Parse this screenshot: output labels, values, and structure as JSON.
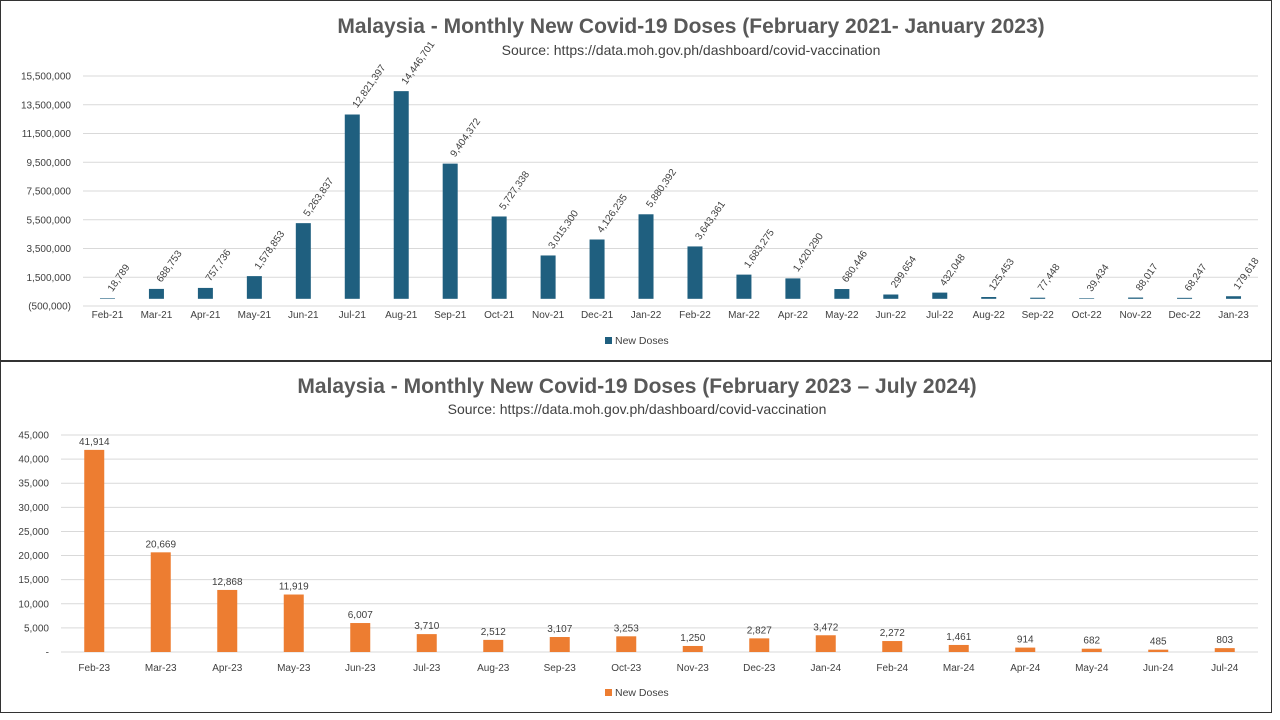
{
  "chart_data": [
    {
      "type": "bar",
      "title": "Malaysia - Monthly New Covid-19 Doses (February 2021- January 2023)",
      "subtitle": "Source: https://data.moh.gov.ph/dashboard/covid-vaccination",
      "categories": [
        "Feb-21",
        "Mar-21",
        "Apr-21",
        "May-21",
        "Jun-21",
        "Jul-21",
        "Aug-21",
        "Sep-21",
        "Oct-21",
        "Nov-21",
        "Dec-21",
        "Jan-22",
        "Feb-22",
        "Mar-22",
        "Apr-22",
        "May-22",
        "Jun-22",
        "Jul-22",
        "Aug-22",
        "Sep-22",
        "Oct-22",
        "Nov-22",
        "Dec-22",
        "Jan-23"
      ],
      "series": [
        {
          "name": "New Doses",
          "values": [
            18789,
            688753,
            757736,
            1578853,
            5263837,
            12821397,
            14446701,
            9404372,
            5727338,
            3015300,
            4126235,
            5880392,
            3643361,
            1683275,
            1420290,
            680446,
            299654,
            432048,
            125453,
            77448,
            39434,
            88017,
            68247,
            179618
          ],
          "data_labels": [
            "18,789",
            "688,753",
            "757,736",
            "1,578,853",
            "5,263,837",
            "12,821,397",
            "14,446,701",
            "9,404,372",
            "5,727,338",
            "3,015,300",
            "4,126,235",
            "5,880,392",
            "3,643,361",
            "1,683,275",
            "1,420,290",
            "680,446",
            "299,654",
            "432,048",
            "125,453",
            "77,448",
            "39,434",
            "88,017",
            "68,247",
            "179,618"
          ]
        }
      ],
      "y_ticks": [
        -500000,
        1500000,
        3500000,
        5500000,
        7500000,
        9500000,
        11500000,
        13500000,
        15500000
      ],
      "y_tick_labels": [
        "(500,000)",
        "1,500,000",
        "3,500,000",
        "5,500,000",
        "7,500,000",
        "9,500,000",
        "11,500,000",
        "13,500,000",
        "15,500,000"
      ],
      "ylim": [
        -500000,
        15500000
      ],
      "grid": true,
      "legend": "bottom",
      "color": "#1f5f7f",
      "label_rotation": "diagonal"
    },
    {
      "type": "bar",
      "title": "Malaysia - Monthly New Covid-19 Doses (February 2023 – July 2024)",
      "subtitle": "Source: https://data.moh.gov.ph/dashboard/covid-vaccination",
      "categories": [
        "Feb-23",
        "Mar-23",
        "Apr-23",
        "May-23",
        "Jun-23",
        "Jul-23",
        "Aug-23",
        "Sep-23",
        "Oct-23",
        "Nov-23",
        "Dec-23",
        "Jan-24",
        "Feb-24",
        "Mar-24",
        "Apr-24",
        "May-24",
        "Jun-24",
        "Jul-24"
      ],
      "series": [
        {
          "name": "New Doses",
          "values": [
            41914,
            20669,
            12868,
            11919,
            6007,
            3710,
            2512,
            3107,
            3253,
            1250,
            2827,
            3472,
            2272,
            1461,
            914,
            682,
            485,
            803
          ],
          "data_labels": [
            "41,914",
            "20,669",
            "12,868",
            "11,919",
            "6,007",
            "3,710",
            "2,512",
            "3,107",
            "3,253",
            "1,250",
            "2,827",
            "3,472",
            "2,272",
            "1,461",
            "914",
            "682",
            "485",
            "803"
          ]
        }
      ],
      "y_ticks": [
        0,
        5000,
        10000,
        15000,
        20000,
        25000,
        30000,
        35000,
        40000,
        45000
      ],
      "y_tick_labels": [
        "-",
        "5,000",
        "10,000",
        "15,000",
        "20,000",
        "25,000",
        "30,000",
        "35,000",
        "40,000",
        "45,000"
      ],
      "ylim": [
        0,
        45000
      ],
      "grid": true,
      "legend": "bottom",
      "color": "#ed7d31",
      "label_rotation": "horizontal"
    }
  ]
}
